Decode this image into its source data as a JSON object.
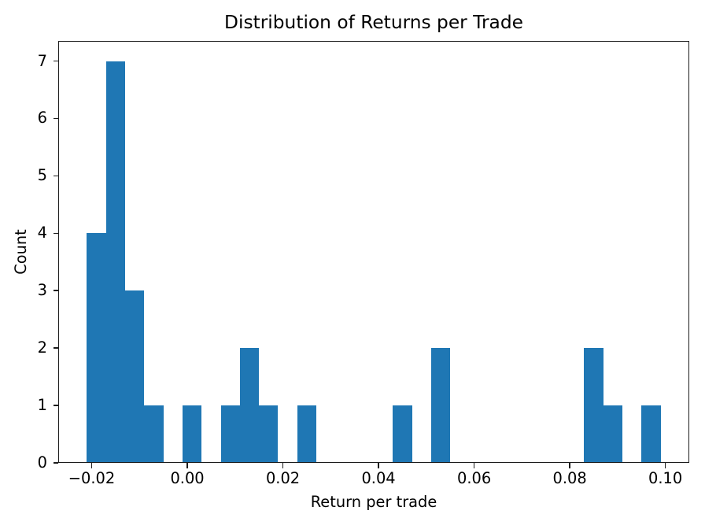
{
  "chart_data": {
    "type": "bar",
    "variant": "histogram",
    "title": "Distribution of Returns per Trade",
    "xlabel": "Return per trade",
    "ylabel": "Count",
    "bar_color": "#1f77b4",
    "grid": false,
    "legend": null,
    "bin_start": -0.021,
    "bin_width": 0.004,
    "bin_edges": [
      -0.021,
      -0.017,
      -0.013,
      -0.009,
      -0.005,
      -0.001,
      0.003,
      0.007,
      0.011,
      0.015,
      0.019,
      0.023,
      0.027,
      0.031,
      0.035,
      0.039,
      0.043,
      0.047,
      0.051,
      0.055,
      0.059,
      0.063,
      0.067,
      0.071,
      0.075,
      0.079,
      0.083,
      0.087,
      0.091,
      0.095,
      0.099
    ],
    "counts": [
      4,
      7,
      3,
      1,
      0,
      1,
      0,
      1,
      2,
      1,
      0,
      1,
      0,
      0,
      0,
      0,
      1,
      0,
      2,
      0,
      0,
      0,
      0,
      0,
      0,
      0,
      2,
      1,
      0,
      1
    ],
    "xlim": [
      -0.027,
      0.105
    ],
    "ylim": [
      0,
      7.35
    ],
    "x_ticks": [
      -0.02,
      0,
      0.02,
      0.04,
      0.06,
      0.08,
      0.1
    ],
    "x_tick_labels": [
      "−0.02",
      "0.00",
      "0.02",
      "0.04",
      "0.06",
      "0.08",
      "0.10"
    ],
    "y_ticks": [
      0,
      1,
      2,
      3,
      4,
      5,
      6,
      7
    ],
    "y_tick_labels": [
      "0",
      "1",
      "2",
      "3",
      "4",
      "5",
      "6",
      "7"
    ]
  }
}
